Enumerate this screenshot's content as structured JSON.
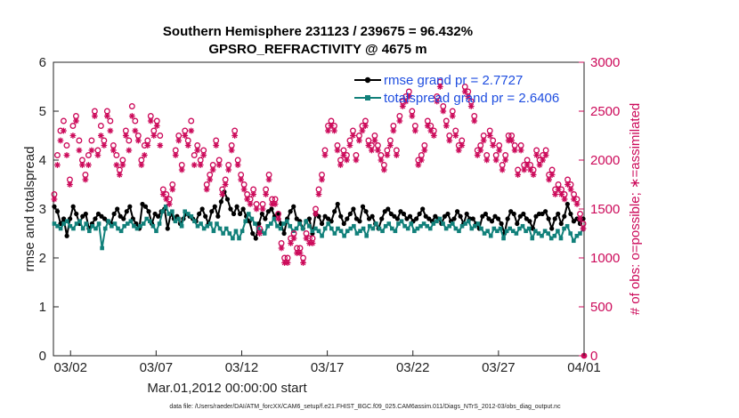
{
  "chart_data": {
    "type": "line",
    "title": "Southern Hemisphere 231123 / 239675 = 96.432%",
    "subtitle": "GPSRO_REFRACTIVITY @ 4675 m",
    "xlabel": "Mar.01,2012 00:00:00 start",
    "ylabel": "rmse and totalspread",
    "ylabel_right": "# of obs: o=possible; ∗=assimilated",
    "footnote": "data file: /Users/raeder/DAI/ATM_forcXX/CAM6_setup/f.e21.FHIST_BGC.f09_025.CAM6assim.011/Diags_NTrS_2012-03/obs_diag_output.nc",
    "x_unit": "days since Mar.01,2012 00:00",
    "xlim": [
      0,
      31
    ],
    "x_tick_values": [
      1,
      6,
      11,
      16,
      21,
      26,
      31
    ],
    "x_tick_labels": [
      "03/02",
      "03/07",
      "03/12",
      "03/17",
      "03/22",
      "03/27",
      "04/01"
    ],
    "ylim": [
      0,
      6
    ],
    "y_ticks": [
      0,
      1,
      2,
      3,
      4,
      5,
      6
    ],
    "ylim_right": [
      0,
      3000
    ],
    "y_ticks_right": [
      0,
      500,
      1000,
      1500,
      2000,
      2500,
      3000
    ],
    "legend": {
      "position": "top-right"
    },
    "series": [
      {
        "name": "rmse grand pr = 2.7727",
        "axis": "left",
        "color": "#000000",
        "marker": "circle",
        "values": [
          3.05,
          2.95,
          2.7,
          2.8,
          2.45,
          2.8,
          3.05,
          2.9,
          2.7,
          2.85,
          2.9,
          2.6,
          2.7,
          2.8,
          2.9,
          2.85,
          2.8,
          2.75,
          2.7,
          2.9,
          3.0,
          2.85,
          2.8,
          2.95,
          3.05,
          2.8,
          2.7,
          2.6,
          3.1,
          3.05,
          2.95,
          2.7,
          2.9,
          2.85,
          2.95,
          3.0,
          2.6,
          2.9,
          2.8,
          2.85,
          2.7,
          2.8,
          2.9,
          2.85,
          2.8,
          2.75,
          2.9,
          3.0,
          2.85,
          2.7,
          2.95,
          3.05,
          2.85,
          3.15,
          3.35,
          3.2,
          3.0,
          2.9,
          3.05,
          2.9,
          3.0,
          2.85,
          2.75,
          2.5,
          2.4,
          2.7,
          2.9,
          2.8,
          2.95,
          3.0,
          2.85,
          2.9,
          2.7,
          2.5,
          2.8,
          2.95,
          3.05,
          2.8,
          2.75,
          2.6,
          2.75,
          2.8,
          2.5,
          2.9,
          2.85,
          2.7,
          2.85,
          2.8,
          2.75,
          2.95,
          3.1,
          2.85,
          2.7,
          2.8,
          2.9,
          3.0,
          2.8,
          2.75,
          3.05,
          2.95,
          2.8,
          2.85,
          2.7,
          2.6,
          2.8,
          2.95,
          3.0,
          2.9,
          2.85,
          2.8,
          2.95,
          2.9,
          2.8,
          2.85,
          2.75,
          2.8,
          2.9,
          3.0,
          2.85,
          2.8,
          2.75,
          2.85,
          2.8,
          2.7,
          2.85,
          2.9,
          2.75,
          2.8,
          2.95,
          2.85,
          2.7,
          2.9,
          2.8,
          2.8,
          2.7,
          2.6,
          2.85,
          2.9,
          2.8,
          2.75,
          2.85,
          2.8,
          2.7,
          2.5,
          2.8,
          2.95,
          2.9,
          2.7,
          2.85,
          2.9,
          2.8,
          2.75,
          2.6,
          2.85,
          2.9,
          2.9,
          2.95,
          2.8,
          2.6,
          2.8,
          2.9,
          2.7,
          2.85,
          3.1,
          2.9,
          2.75,
          2.8,
          2.7,
          2.8
        ]
      },
      {
        "name": "totalspread grand pr = 2.6406",
        "axis": "left",
        "color": "#11807a",
        "marker": "square",
        "values": [
          2.7,
          2.65,
          2.6,
          2.7,
          2.75,
          2.65,
          2.6,
          2.7,
          2.75,
          2.6,
          2.7,
          2.55,
          2.65,
          2.6,
          2.7,
          2.2,
          2.6,
          2.75,
          2.65,
          2.7,
          2.6,
          2.55,
          2.65,
          2.7,
          2.75,
          2.65,
          2.6,
          2.65,
          2.7,
          2.8,
          2.75,
          2.65,
          2.55,
          2.7,
          2.95,
          3.05,
          2.9,
          2.95,
          2.75,
          2.8,
          2.65,
          2.95,
          2.9,
          2.85,
          2.75,
          2.65,
          2.7,
          2.6,
          2.65,
          2.7,
          2.55,
          2.7,
          2.6,
          2.5,
          2.6,
          2.5,
          2.4,
          2.55,
          2.4,
          2.55,
          2.75,
          2.9,
          2.8,
          2.7,
          2.6,
          2.55,
          2.5,
          2.65,
          2.7,
          2.8,
          2.65,
          2.6,
          2.7,
          2.75,
          2.65,
          2.55,
          2.6,
          2.7,
          2.6,
          2.75,
          2.65,
          2.55,
          2.6,
          2.55,
          2.45,
          2.6,
          2.7,
          2.6,
          2.5,
          2.6,
          2.55,
          2.45,
          2.55,
          2.6,
          2.65,
          2.5,
          2.55,
          2.6,
          2.45,
          2.65,
          2.6,
          2.7,
          2.6,
          2.55,
          2.65,
          2.7,
          2.6,
          2.55,
          2.7,
          2.75,
          2.65,
          2.6,
          2.7,
          2.55,
          2.6,
          2.65,
          2.7,
          2.65,
          2.6,
          2.7,
          2.75,
          2.8,
          2.7,
          2.6,
          2.65,
          2.7,
          2.6,
          2.55,
          2.65,
          2.7,
          2.75,
          2.6,
          2.65,
          2.7,
          2.6,
          2.5,
          2.55,
          2.45,
          2.6,
          2.55,
          2.6,
          2.4,
          2.55,
          2.6,
          2.55,
          2.5,
          2.6,
          2.65,
          2.55,
          2.6,
          2.4,
          2.55,
          2.5,
          2.45,
          2.55,
          2.5,
          2.4,
          2.45,
          2.55,
          2.4,
          2.6,
          2.65,
          2.5,
          2.35,
          2.45,
          2.5,
          2.6
        ]
      },
      {
        "name": "possible obs",
        "axis": "right",
        "color": "#cc0a5a",
        "marker": "open-circle",
        "values": [
          1650,
          2050,
          2300,
          2400,
          2150,
          1800,
          2350,
          2450,
          2200,
          2000,
          1850,
          2050,
          2200,
          2500,
          2100,
          2350,
          2200,
          2500,
          2400,
          2150,
          2050,
          1900,
          2000,
          2300,
          2200,
          2550,
          2400,
          2250,
          2000,
          2150,
          2200,
          2450,
          2300,
          2400,
          2250,
          1700,
          1650,
          1600,
          1750,
          2100,
          2250,
          1950,
          2300,
          2200,
          2400,
          2050,
          2150,
          2000,
          2100,
          1750,
          1850,
          1950,
          2200,
          2000,
          1700,
          1800,
          1950,
          2150,
          2300,
          2000,
          1850,
          1750,
          1650,
          1600,
          1700,
          1550,
          1300,
          1550,
          1700,
          1850,
          1600,
          1600,
          1450,
          1150,
          1000,
          1000,
          1200,
          1250,
          1100,
          1100,
          1000,
          1250,
          1200,
          1200,
          1500,
          1700,
          1850,
          2100,
          2350,
          2400,
          2350,
          2150,
          2000,
          2100,
          2050,
          2200,
          2300,
          2050,
          2250,
          2350,
          2400,
          2200,
          2150,
          2250,
          2150,
          2050,
          1950,
          2100,
          2200,
          2350,
          2100,
          2450,
          2600,
          2650,
          2700,
          2500,
          2350,
          2000,
          2050,
          2150,
          2400,
          2350,
          2300,
          2650,
          2800,
          2550,
          2400,
          2250,
          2500,
          2300,
          2150,
          2200,
          2750,
          2700,
          2600,
          2450,
          2100,
          2150,
          2250,
          2050,
          2300,
          2200,
          2050,
          2150,
          1950,
          2050,
          2250,
          2250,
          2150,
          1900,
          2150,
          1950,
          2000,
          1950,
          1900,
          2100,
          2000,
          2050,
          2100,
          1850,
          1900,
          1700,
          1750,
          1700,
          1650,
          1800,
          1750,
          1650,
          1600,
          1450,
          1350
        ]
      },
      {
        "name": "assimilated obs",
        "axis": "right",
        "color": "#cc0a5a",
        "marker": "asterisk",
        "values": [
          1600,
          1950,
          2200,
          2300,
          2050,
          1750,
          2250,
          2400,
          2100,
          1950,
          1800,
          1950,
          2100,
          2450,
          2050,
          2250,
          2150,
          2450,
          2300,
          2100,
          1950,
          1850,
          1950,
          2250,
          2100,
          2450,
          2300,
          2200,
          1950,
          2050,
          2150,
          2400,
          2250,
          2350,
          2150,
          1650,
          1600,
          1550,
          1700,
          2050,
          2200,
          1900,
          2250,
          2150,
          2300,
          1950,
          2100,
          1950,
          2050,
          1700,
          1800,
          1900,
          2150,
          1950,
          1650,
          1750,
          1900,
          2100,
          2250,
          1950,
          1800,
          1700,
          1600,
          1550,
          1650,
          1500,
          1250,
          1500,
          1650,
          1800,
          1550,
          1550,
          1400,
          1100,
          950,
          950,
          1150,
          1200,
          1050,
          1050,
          950,
          1200,
          1150,
          1150,
          1450,
          1650,
          1800,
          2050,
          2300,
          2350,
          2300,
          2100,
          1950,
          2050,
          2000,
          2150,
          2250,
          2000,
          2200,
          2300,
          2350,
          2150,
          2100,
          2200,
          2100,
          2000,
          1900,
          2050,
          2150,
          2300,
          2050,
          2400,
          2550,
          2600,
          2650,
          2450,
          2300,
          1950,
          2000,
          2100,
          2350,
          2300,
          2250,
          2600,
          2750,
          2500,
          2350,
          2200,
          2450,
          2250,
          2100,
          2150,
          2700,
          2650,
          2550,
          2400,
          2050,
          2100,
          2200,
          2000,
          2250,
          2150,
          2000,
          2100,
          1900,
          2000,
          2200,
          2200,
          2100,
          1850,
          2100,
          1900,
          1950,
          1900,
          1850,
          2050,
          1950,
          2000,
          2050,
          1800,
          1850,
          1650,
          1700,
          1650,
          1600,
          1750,
          1700,
          1600,
          1550,
          1400,
          1300
        ]
      }
    ],
    "final_point_right": {
      "x": 31,
      "y": 0
    }
  }
}
